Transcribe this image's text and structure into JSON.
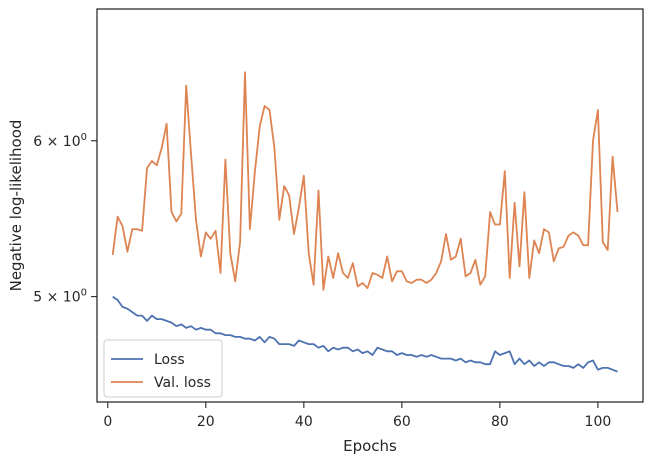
{
  "chart_data": {
    "type": "line",
    "title": "",
    "xlabel": "Epochs",
    "ylabel": "Negative log-likelihood",
    "xlim": [
      -2.2,
      109.2
    ],
    "ylim": [
      4.42,
      7.0
    ],
    "yscale": "log",
    "grid": false,
    "legend_position": "lower-left",
    "xticks": [
      0,
      20,
      40,
      60,
      80,
      100
    ],
    "xtick_labels": [
      "0",
      "20",
      "40",
      "60",
      "80",
      "100"
    ],
    "yticks": [
      5,
      6
    ],
    "ytick_labels": [
      {
        "mantissa": "5",
        "base": "10",
        "exp": "0"
      },
      {
        "mantissa": "6",
        "base": "10",
        "exp": "0"
      }
    ],
    "series": [
      {
        "name": "Loss",
        "color": "#4c72b0",
        "x": [
          1,
          2,
          3,
          4,
          5,
          6,
          7,
          8,
          9,
          10,
          11,
          12,
          13,
          14,
          15,
          16,
          17,
          18,
          19,
          20,
          21,
          22,
          23,
          24,
          25,
          26,
          27,
          28,
          29,
          30,
          31,
          32,
          33,
          34,
          35,
          36,
          37,
          38,
          39,
          40,
          41,
          42,
          43,
          44,
          45,
          46,
          47,
          48,
          49,
          50,
          51,
          52,
          53,
          54,
          55,
          56,
          57,
          58,
          59,
          60,
          61,
          62,
          63,
          64,
          65,
          66,
          67,
          68,
          69,
          70,
          71,
          72,
          73,
          74,
          75,
          76,
          77,
          78,
          79,
          80,
          81,
          82,
          83,
          84,
          85,
          86,
          87,
          88,
          89,
          90,
          91,
          92,
          93,
          94,
          95,
          96,
          97,
          98,
          99,
          100,
          101,
          102,
          103,
          104
        ],
        "values": [
          5.0,
          4.98,
          4.94,
          4.93,
          4.91,
          4.89,
          4.89,
          4.86,
          4.89,
          4.87,
          4.87,
          4.86,
          4.85,
          4.83,
          4.84,
          4.82,
          4.83,
          4.81,
          4.82,
          4.81,
          4.81,
          4.79,
          4.79,
          4.78,
          4.78,
          4.77,
          4.77,
          4.76,
          4.76,
          4.75,
          4.77,
          4.74,
          4.77,
          4.76,
          4.73,
          4.73,
          4.73,
          4.72,
          4.75,
          4.74,
          4.73,
          4.73,
          4.71,
          4.72,
          4.69,
          4.71,
          4.7,
          4.71,
          4.71,
          4.69,
          4.7,
          4.68,
          4.69,
          4.67,
          4.71,
          4.7,
          4.69,
          4.69,
          4.67,
          4.68,
          4.67,
          4.67,
          4.66,
          4.67,
          4.66,
          4.67,
          4.66,
          4.65,
          4.65,
          4.65,
          4.64,
          4.65,
          4.63,
          4.64,
          4.63,
          4.63,
          4.62,
          4.62,
          4.69,
          4.67,
          4.68,
          4.69,
          4.62,
          4.65,
          4.62,
          4.64,
          4.61,
          4.63,
          4.61,
          4.63,
          4.63,
          4.62,
          4.61,
          4.61,
          4.6,
          4.62,
          4.6,
          4.63,
          4.64,
          4.59,
          4.6,
          4.6,
          4.59,
          4.58
        ]
      },
      {
        "name": "Val. loss",
        "color": "#dd8452",
        "x": [
          1,
          2,
          3,
          4,
          5,
          6,
          7,
          8,
          9,
          10,
          11,
          12,
          13,
          14,
          15,
          16,
          17,
          18,
          19,
          20,
          21,
          22,
          23,
          24,
          25,
          26,
          27,
          28,
          29,
          30,
          31,
          32,
          33,
          34,
          35,
          36,
          37,
          38,
          39,
          40,
          41,
          42,
          43,
          44,
          45,
          46,
          47,
          48,
          49,
          50,
          51,
          52,
          53,
          54,
          55,
          56,
          57,
          58,
          59,
          60,
          61,
          62,
          63,
          64,
          65,
          66,
          67,
          68,
          69,
          70,
          71,
          72,
          73,
          74,
          75,
          76,
          77,
          78,
          79,
          80,
          81,
          82,
          83,
          84,
          85,
          86,
          87,
          88,
          89,
          90,
          91,
          92,
          93,
          94,
          95,
          96,
          97,
          98,
          99,
          100,
          101,
          102,
          103,
          104
        ],
        "values": [
          5.25,
          5.49,
          5.43,
          5.27,
          5.41,
          5.41,
          5.4,
          5.81,
          5.86,
          5.83,
          5.95,
          6.12,
          5.52,
          5.46,
          5.51,
          6.4,
          5.9,
          5.47,
          5.24,
          5.39,
          5.35,
          5.4,
          5.14,
          5.87,
          5.26,
          5.09,
          5.33,
          6.5,
          5.41,
          5.78,
          6.1,
          6.25,
          6.22,
          5.95,
          5.47,
          5.69,
          5.63,
          5.38,
          5.55,
          5.76,
          5.26,
          5.07,
          5.66,
          5.04,
          5.24,
          5.11,
          5.26,
          5.14,
          5.11,
          5.2,
          5.06,
          5.08,
          5.05,
          5.14,
          5.13,
          5.11,
          5.24,
          5.09,
          5.15,
          5.15,
          5.09,
          5.08,
          5.1,
          5.1,
          5.08,
          5.1,
          5.14,
          5.21,
          5.38,
          5.22,
          5.24,
          5.35,
          5.12,
          5.14,
          5.22,
          5.07,
          5.12,
          5.52,
          5.44,
          5.44,
          5.79,
          5.11,
          5.58,
          5.18,
          5.65,
          5.11,
          5.34,
          5.26,
          5.41,
          5.39,
          5.21,
          5.29,
          5.3,
          5.37,
          5.39,
          5.37,
          5.31,
          5.31,
          6.0,
          6.22,
          5.33,
          5.28,
          5.89,
          5.52
        ]
      }
    ]
  }
}
